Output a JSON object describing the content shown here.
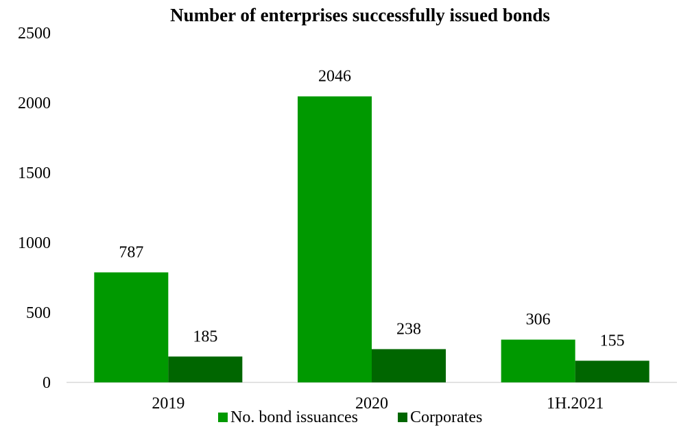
{
  "chart_data": {
    "type": "bar",
    "title": "Number of enterprises successfully issued bonds",
    "xlabel": "",
    "ylabel": "",
    "categories": [
      "2019",
      "2020",
      "1H.2021"
    ],
    "series": [
      {
        "name": "No. bond issuances",
        "values": [
          787,
          2046,
          306
        ],
        "color": "#009900"
      },
      {
        "name": "Corporates",
        "values": [
          185,
          238,
          155
        ],
        "color": "#006600"
      }
    ],
    "ylim": [
      0,
      2500
    ],
    "yticks": [
      0,
      500,
      1000,
      1500,
      2000,
      2500
    ],
    "ytick_labels": [
      "0",
      "500",
      "1000",
      "1500",
      "2000",
      "2500"
    ],
    "data_labels": [
      [
        "787",
        "2046",
        "306"
      ],
      [
        "185",
        "238",
        "155"
      ]
    ],
    "grid": false,
    "legend_position": "bottom"
  }
}
